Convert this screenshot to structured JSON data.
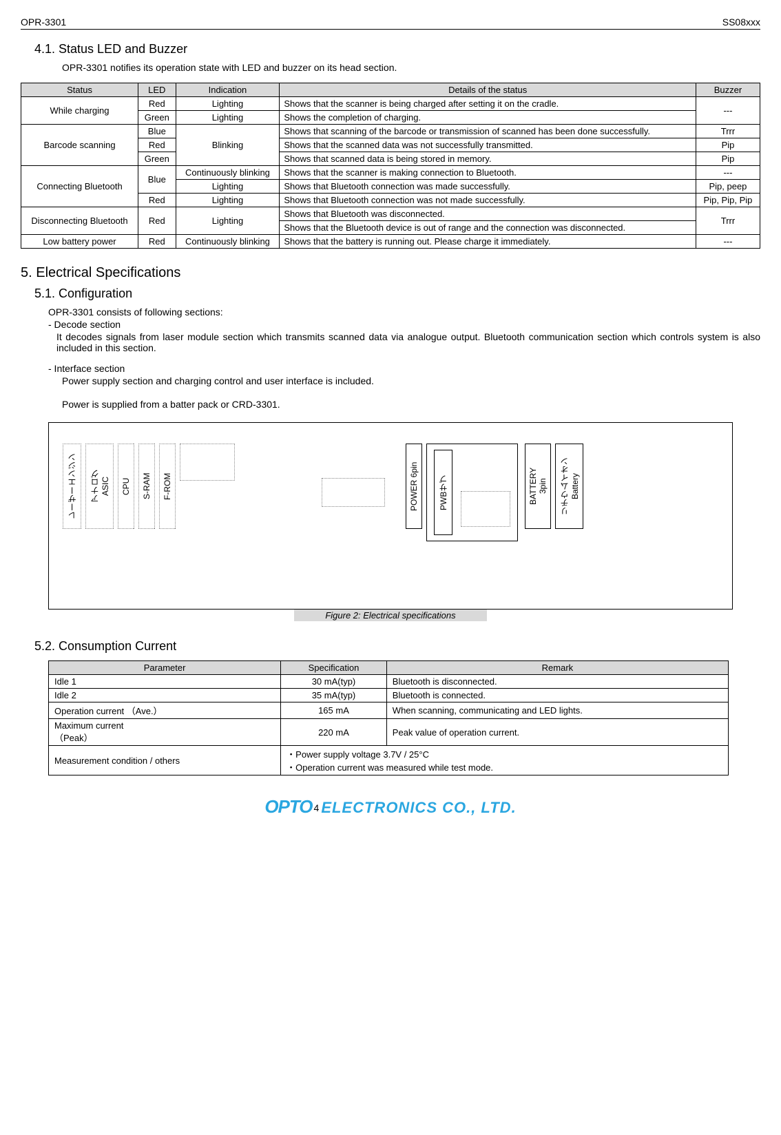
{
  "header": {
    "left": "OPR-3301",
    "right": "SS08xxx"
  },
  "sec41": {
    "title": "4.1. Status LED and Buzzer",
    "intro": "OPR-3301 notifies its operation state with LED and buzzer on its head section."
  },
  "statusTable": {
    "headers": [
      "Status",
      "LED",
      "Indication",
      "Details of the status",
      "Buzzer"
    ],
    "rows": [
      {
        "status": "While charging",
        "status_rs": 2,
        "led": "Red",
        "ind": "Lighting",
        "det": "Shows that the scanner is being charged after setting it on the cradle.",
        "buz": "---",
        "buz_rs": 2
      },
      {
        "led": "Green",
        "ind": "Lighting",
        "det": "Shows the completion of charging."
      },
      {
        "status": "Barcode scanning",
        "status_rs": 3,
        "led": "Blue",
        "ind": "Blinking",
        "ind_rs": 3,
        "det": "Shows that scanning of the barcode or transmission of scanned has been done successfully.",
        "buz": "Trrr",
        "justify": true
      },
      {
        "led": "Red",
        "det": "Shows that the scanned data was not successfully transmitted.",
        "buz": "Pip"
      },
      {
        "led": "Green",
        "det": "Shows that scanned data is being stored in memory.",
        "buz": "Pip"
      },
      {
        "status": "Connecting Bluetooth",
        "status_rs": 3,
        "led": "Blue",
        "led_rs": 2,
        "ind": "Continuously blinking",
        "det": "Shows that the scanner is making connection to Bluetooth.",
        "buz": "---"
      },
      {
        "ind": "Lighting",
        "det": "Shows that Bluetooth connection was made successfully.",
        "buz": "Pip, peep"
      },
      {
        "led": "Red",
        "ind": "Lighting",
        "det": "Shows that Bluetooth connection was not made successfully.",
        "buz": "Pip, Pip, Pip"
      },
      {
        "status": "Disconnecting Bluetooth",
        "status_rs": 2,
        "led": "Red",
        "led_rs": 2,
        "ind": "Lighting",
        "ind_rs": 2,
        "det": "Shows that Bluetooth was disconnected.",
        "buz": "Trrr",
        "buz_rs": 2
      },
      {
        "det": "Shows that the Bluetooth device is out of range and the connection was disconnected.",
        "justify": true
      },
      {
        "status": "Low battery power",
        "led": "Red",
        "ind": "Continuously blinking",
        "det": "Shows that the battery is running out. Please charge it immediately.",
        "buz": "---"
      }
    ]
  },
  "sec5": {
    "title": "5.  Electrical Specifications"
  },
  "sec51": {
    "title": "5.1. Configuration",
    "l1": "OPR-3301 consists of following sections:",
    "l2": "- Decode section",
    "l3": "It decodes signals from laser module section which transmits scanned data via analogue output. Bluetooth communication section which controls system is also included in this section.",
    "l4": "- Interface section",
    "l5": "Power supply section and charging control and user interface is included.",
    "l6": "Power is supplied from a batter pack or CRD-3301."
  },
  "fig": {
    "blocks_left": [
      "レーザーエンジン",
      "アナログ\nASIC",
      "CPU",
      "S-RAM",
      "F-ROM"
    ],
    "blocks_right": [
      "POWER  6pin",
      "PWBサブ",
      "BATTERY\n3pin",
      "リチウムイオン\nBattery"
    ],
    "caption": "Figure 2: Electrical specifications"
  },
  "sec52": {
    "title": "5.2. Consumption Current"
  },
  "consumTable": {
    "headers": [
      "Parameter",
      "Specification",
      "Remark"
    ],
    "rows": [
      [
        "Idle 1",
        "30 mA(typ)",
        "Bluetooth is disconnected."
      ],
      [
        "Idle 2",
        "35 mA(typ)",
        "Bluetooth is connected."
      ],
      [
        "Operation current （Ave.）",
        "165 mA",
        "When scanning, communicating and LED lights."
      ],
      [
        "Maximum current\n（Peak）",
        "220 mA",
        "Peak value of operation current."
      ]
    ],
    "lastrow": {
      "param": "Measurement condition / others",
      "lines": [
        "・Power supply voltage 3.7V / 25°C",
        "・Operation current was measured while test mode."
      ]
    }
  },
  "footer": {
    "pagenum": "4",
    "brand_left": "OPTO",
    "brand_right": "ELECTRONICS CO., LTD."
  }
}
